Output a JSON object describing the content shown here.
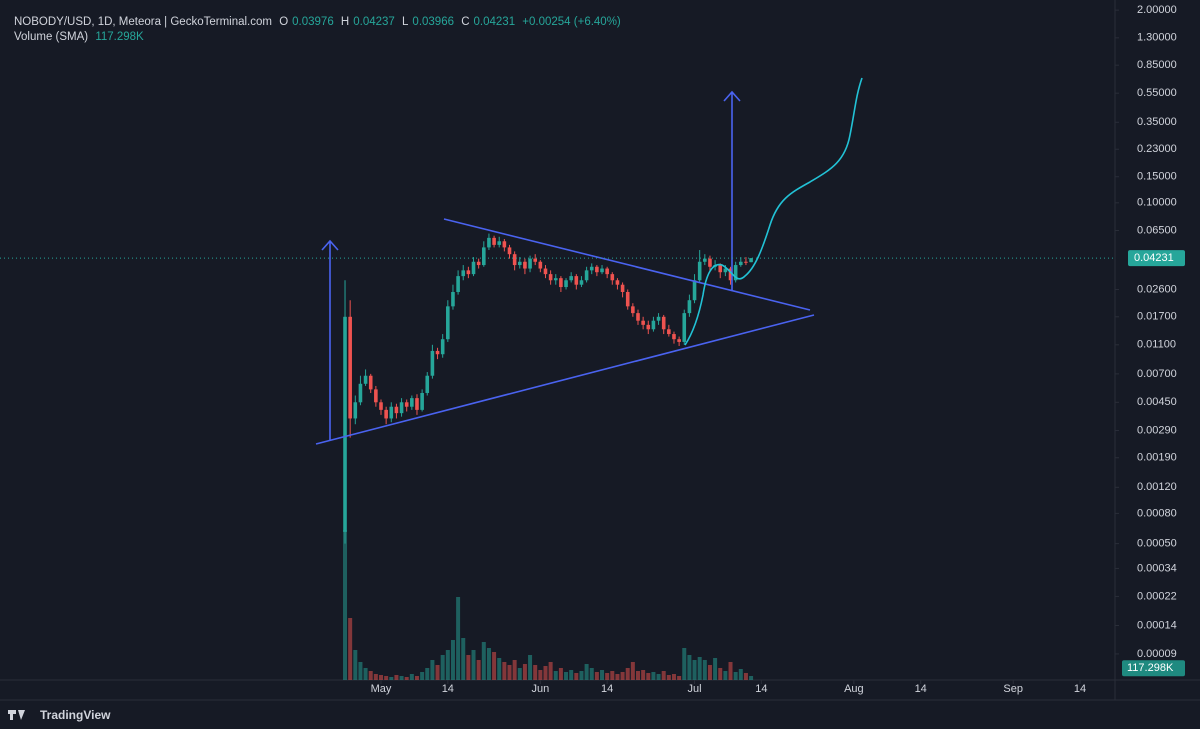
{
  "header": {
    "symbol": "NOBODY/USD, 1D, Meteora | GeckoTerminal.com",
    "o": "O",
    "h": "H",
    "l": "L",
    "c": "C",
    "change": "+0.00254 (+6.40%)",
    "volume_title": "Volume (SMA)",
    "brand": "TradingView"
  },
  "chart_data": {
    "type": "candlestick",
    "log_scale": true,
    "up_color": "#26a69a",
    "down_color": "#ef5350",
    "x": [
      "04-24",
      "04-25",
      "04-26",
      "04-27",
      "04-28",
      "04-29",
      "04-30",
      "05-01",
      "05-02",
      "05-03",
      "05-04",
      "05-05",
      "05-06",
      "05-07",
      "05-08",
      "05-09",
      "05-10",
      "05-11",
      "05-12",
      "05-13",
      "05-14",
      "05-15",
      "05-16",
      "05-17",
      "05-18",
      "05-19",
      "05-20",
      "05-21",
      "05-22",
      "05-23",
      "05-24",
      "05-25",
      "05-26",
      "05-27",
      "05-28",
      "05-29",
      "05-30",
      "05-31",
      "06-01",
      "06-02",
      "06-03",
      "06-04",
      "06-05",
      "06-06",
      "06-07",
      "06-08",
      "06-09",
      "06-10",
      "06-11",
      "06-12",
      "06-13",
      "06-14",
      "06-15",
      "06-16",
      "06-17",
      "06-18",
      "06-19",
      "06-20",
      "06-21",
      "06-22",
      "06-23",
      "06-24",
      "06-25",
      "06-26",
      "06-27",
      "06-28",
      "06-29",
      "06-30",
      "07-01",
      "07-02",
      "07-03",
      "07-04",
      "07-05",
      "07-06",
      "07-07",
      "07-08",
      "07-09",
      "07-10",
      "07-11",
      "07-12"
    ],
    "open": [
      0.0006,
      0.017,
      0.0035,
      0.0045,
      0.006,
      0.0068,
      0.0055,
      0.0045,
      0.004,
      0.0035,
      0.0042,
      0.0038,
      0.0045,
      0.0042,
      0.0048,
      0.004,
      0.0052,
      0.0068,
      0.01,
      0.0095,
      0.012,
      0.02,
      0.025,
      0.032,
      0.035,
      0.033,
      0.04,
      0.038,
      0.05,
      0.058,
      0.052,
      0.055,
      0.05,
      0.045,
      0.038,
      0.04,
      0.036,
      0.042,
      0.04,
      0.036,
      0.033,
      0.03,
      0.031,
      0.027,
      0.03,
      0.032,
      0.028,
      0.03,
      0.035,
      0.037,
      0.034,
      0.036,
      0.033,
      0.03,
      0.028,
      0.025,
      0.02,
      0.018,
      0.016,
      0.015,
      0.014,
      0.016,
      0.017,
      0.014,
      0.013,
      0.012,
      0.0115,
      0.018,
      0.022,
      0.03,
      0.04,
      0.042,
      0.037,
      0.038,
      0.034,
      0.036,
      0.03,
      0.038,
      0.04,
      0.03976
    ],
    "high": [
      0.03,
      0.022,
      0.005,
      0.0068,
      0.0075,
      0.007,
      0.0058,
      0.0047,
      0.0042,
      0.0045,
      0.0044,
      0.0048,
      0.0047,
      0.005,
      0.0051,
      0.0055,
      0.0072,
      0.011,
      0.0105,
      0.013,
      0.022,
      0.028,
      0.035,
      0.038,
      0.037,
      0.043,
      0.042,
      0.055,
      0.062,
      0.06,
      0.059,
      0.057,
      0.052,
      0.047,
      0.043,
      0.042,
      0.044,
      0.045,
      0.041,
      0.038,
      0.035,
      0.033,
      0.032,
      0.031,
      0.034,
      0.033,
      0.032,
      0.037,
      0.039,
      0.038,
      0.038,
      0.037,
      0.034,
      0.031,
      0.029,
      0.026,
      0.021,
      0.019,
      0.017,
      0.016,
      0.017,
      0.018,
      0.0175,
      0.015,
      0.0135,
      0.0125,
      0.019,
      0.024,
      0.033,
      0.048,
      0.045,
      0.044,
      0.041,
      0.039,
      0.038,
      0.037,
      0.04,
      0.043,
      0.043,
      0.04237
    ],
    "low": [
      0.0005,
      0.0026,
      0.0032,
      0.0043,
      0.0058,
      0.0052,
      0.0042,
      0.0037,
      0.0032,
      0.0033,
      0.0035,
      0.0036,
      0.0039,
      0.004,
      0.0037,
      0.0039,
      0.005,
      0.0065,
      0.0088,
      0.009,
      0.0115,
      0.019,
      0.024,
      0.03,
      0.031,
      0.032,
      0.036,
      0.037,
      0.048,
      0.05,
      0.05,
      0.047,
      0.042,
      0.035,
      0.036,
      0.033,
      0.034,
      0.038,
      0.034,
      0.031,
      0.028,
      0.028,
      0.025,
      0.026,
      0.029,
      0.026,
      0.027,
      0.029,
      0.033,
      0.032,
      0.033,
      0.031,
      0.028,
      0.026,
      0.023,
      0.019,
      0.017,
      0.015,
      0.014,
      0.013,
      0.0135,
      0.015,
      0.013,
      0.0125,
      0.0112,
      0.0108,
      0.011,
      0.017,
      0.021,
      0.029,
      0.038,
      0.034,
      0.035,
      0.031,
      0.032,
      0.028,
      0.029,
      0.037,
      0.038,
      0.03966
    ],
    "close": [
      0.017,
      0.0035,
      0.0045,
      0.006,
      0.0068,
      0.0055,
      0.0045,
      0.004,
      0.0035,
      0.0042,
      0.0038,
      0.0045,
      0.0042,
      0.0048,
      0.004,
      0.0052,
      0.0068,
      0.01,
      0.0095,
      0.012,
      0.02,
      0.025,
      0.032,
      0.035,
      0.033,
      0.04,
      0.038,
      0.05,
      0.058,
      0.052,
      0.055,
      0.05,
      0.045,
      0.038,
      0.04,
      0.036,
      0.042,
      0.04,
      0.036,
      0.033,
      0.03,
      0.031,
      0.027,
      0.03,
      0.032,
      0.028,
      0.03,
      0.035,
      0.037,
      0.034,
      0.036,
      0.033,
      0.03,
      0.028,
      0.025,
      0.02,
      0.018,
      0.016,
      0.015,
      0.014,
      0.016,
      0.017,
      0.014,
      0.013,
      0.012,
      0.0115,
      0.018,
      0.022,
      0.03,
      0.04,
      0.042,
      0.037,
      0.038,
      0.034,
      0.036,
      0.03,
      0.038,
      0.04,
      0.03976,
      0.04231
    ],
    "volume": [
      1500000,
      620000,
      300000,
      180000,
      120000,
      90000,
      60000,
      50000,
      40000,
      30000,
      50000,
      40000,
      30000,
      60000,
      40000,
      80000,
      120000,
      200000,
      150000,
      250000,
      300000,
      400000,
      830000,
      420000,
      250000,
      300000,
      200000,
      380000,
      320000,
      280000,
      220000,
      180000,
      150000,
      200000,
      120000,
      160000,
      250000,
      150000,
      100000,
      140000,
      180000,
      90000,
      120000,
      80000,
      100000,
      70000,
      90000,
      160000,
      120000,
      80000,
      100000,
      70000,
      90000,
      60000,
      80000,
      120000,
      180000,
      90000,
      100000,
      70000,
      80000,
      60000,
      90000,
      50000,
      60000,
      40000,
      320000,
      250000,
      200000,
      230000,
      200000,
      150000,
      220000,
      120000,
      90000,
      180000,
      80000,
      110000,
      70000,
      40000
    ],
    "volume_sma": {
      "value": 117298,
      "label": "117.298K"
    },
    "volume_lim": [
      0,
      1500000
    ],
    "ylim": [
      6e-05,
      2.2
    ],
    "yticks": [
      {
        "value": 2,
        "label": "2.00000"
      },
      {
        "value": 1.3,
        "label": "1.30000"
      },
      {
        "value": 0.85,
        "label": "0.85000"
      },
      {
        "value": 0.55,
        "label": "0.55000"
      },
      {
        "value": 0.35,
        "label": "0.35000"
      },
      {
        "value": 0.23,
        "label": "0.23000"
      },
      {
        "value": 0.15,
        "label": "0.15000"
      },
      {
        "value": 0.1,
        "label": "0.10000"
      },
      {
        "value": 0.065,
        "label": "0.06500"
      },
      {
        "value": 0.026,
        "label": "0.02600"
      },
      {
        "value": 0.017,
        "label": "0.01700"
      },
      {
        "value": 0.011,
        "label": "0.01100"
      },
      {
        "value": 0.007,
        "label": "0.00700"
      },
      {
        "value": 0.0045,
        "label": "0.00450"
      },
      {
        "value": 0.0029,
        "label": "0.00290"
      },
      {
        "value": 0.0019,
        "label": "0.00190"
      },
      {
        "value": 0.0012,
        "label": "0.00120"
      },
      {
        "value": 0.0008,
        "label": "0.00080"
      },
      {
        "value": 0.0005,
        "label": "0.00050"
      },
      {
        "value": 0.00034,
        "label": "0.00034"
      },
      {
        "value": 0.00022,
        "label": "0.00022"
      },
      {
        "value": 0.00014,
        "label": "0.00014"
      },
      {
        "value": 9e-05,
        "label": "0.00009"
      }
    ],
    "xticks": [
      {
        "value": "05-01",
        "label": "May"
      },
      {
        "value": "05-14",
        "label": "14"
      },
      {
        "value": "06-01",
        "label": "Jun"
      },
      {
        "value": "06-14",
        "label": "14"
      },
      {
        "value": "07-01",
        "label": "Jul"
      },
      {
        "value": "07-14",
        "label": "14"
      },
      {
        "value": "08-01",
        "label": "Aug"
      },
      {
        "value": "08-14",
        "label": "14"
      },
      {
        "value": "09-01",
        "label": "Sep"
      },
      {
        "value": "09-14",
        "label": "14"
      }
    ]
  }
}
